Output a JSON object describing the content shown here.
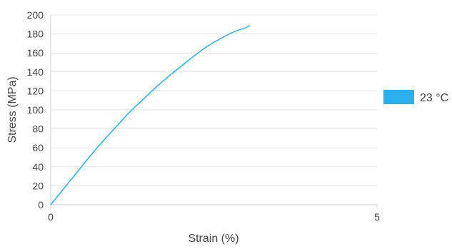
{
  "chart_data": {
    "type": "line",
    "title": "",
    "xlabel": "Strain (%)",
    "ylabel": "Stress (MPa)",
    "xlim": [
      0,
      5
    ],
    "ylim": [
      0,
      200
    ],
    "x_ticks": [
      0,
      5
    ],
    "y_ticks": [
      0,
      20,
      40,
      60,
      80,
      100,
      120,
      140,
      160,
      180,
      200
    ],
    "grid": "horizontal",
    "legend_position": "right",
    "series": [
      {
        "name": "23 °C",
        "color": "#2ab0ee",
        "x": [
          0,
          0.2,
          0.4,
          0.6,
          0.8,
          1.0,
          1.2,
          1.4,
          1.6,
          1.8,
          2.0,
          2.2,
          2.4,
          2.6,
          2.8,
          3.0,
          3.05
        ],
        "y": [
          0,
          17,
          34,
          51,
          67,
          82,
          97,
          110,
          123,
          135,
          146,
          157,
          167,
          175,
          182,
          187,
          189
        ]
      }
    ],
    "colors": {
      "grid": "#e6e6e6",
      "axis": "#cccccc",
      "text": "#444444"
    }
  }
}
